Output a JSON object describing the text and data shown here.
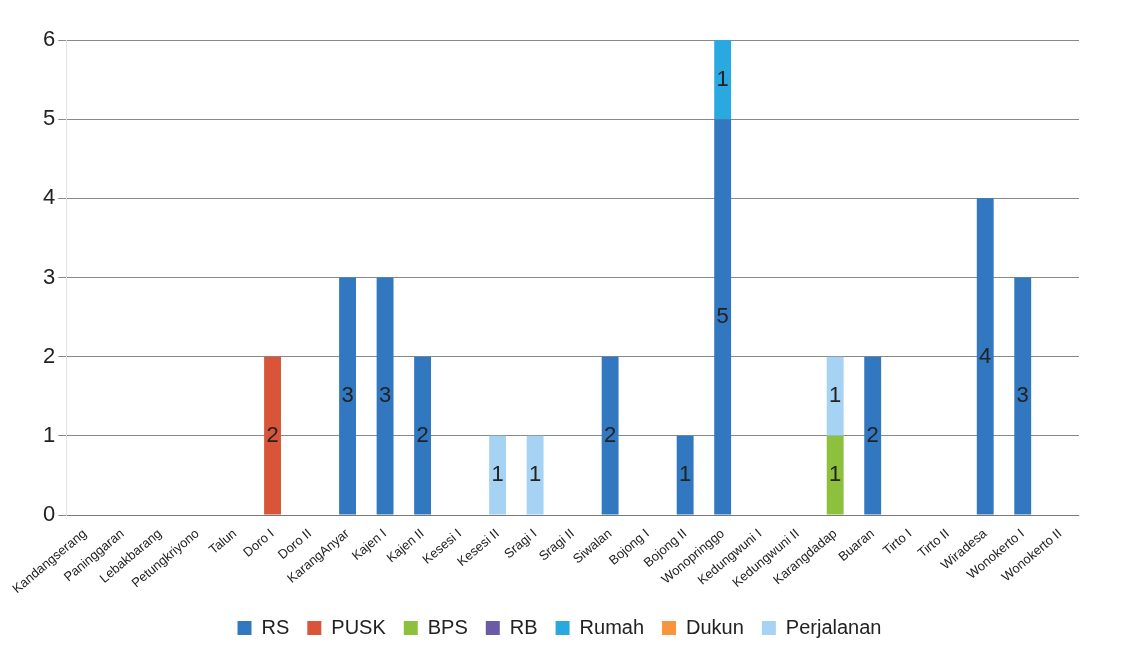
{
  "chart_data": {
    "type": "bar",
    "stacked": true,
    "categories": [
      "Kandangserang",
      "Paninggaran",
      "Lebakbarang",
      "Petungkriyono",
      "Talun",
      "Doro I",
      "Doro II",
      "KarangAnyar",
      "Kajen I",
      "Kajen II",
      "Kesesi I",
      "Kesesi II",
      "Sragi I",
      "Sragi II",
      "Siwalan",
      "Bojong I",
      "Bojong II",
      "Wonopringgo",
      "Kedungwuni I",
      "Kedungwuni II",
      "Karangdadap",
      "Buaran",
      "Tirto I",
      "Tirto II",
      "Wiradesa",
      "Wonokerto I",
      "Wonokerto II"
    ],
    "series": [
      {
        "name": "RS",
        "color": "#3178c0",
        "values": [
          null,
          null,
          null,
          null,
          null,
          null,
          null,
          3,
          3,
          2,
          null,
          null,
          null,
          null,
          2,
          null,
          1,
          5,
          null,
          null,
          null,
          2,
          null,
          null,
          4,
          3,
          null
        ]
      },
      {
        "name": "PUSK",
        "color": "#d8553a",
        "values": [
          null,
          null,
          null,
          null,
          null,
          2,
          null,
          null,
          null,
          null,
          null,
          null,
          null,
          null,
          null,
          null,
          null,
          null,
          null,
          null,
          null,
          null,
          null,
          null,
          null,
          null,
          null
        ]
      },
      {
        "name": "BPS",
        "color": "#8dc03c",
        "values": [
          null,
          null,
          null,
          null,
          null,
          null,
          null,
          null,
          null,
          null,
          null,
          null,
          null,
          null,
          null,
          null,
          null,
          null,
          null,
          null,
          1,
          null,
          null,
          null,
          null,
          null,
          null
        ]
      },
      {
        "name": "RB",
        "color": "#6a5aa8",
        "values": [
          null,
          null,
          null,
          null,
          null,
          null,
          null,
          null,
          null,
          null,
          null,
          null,
          null,
          null,
          null,
          null,
          null,
          null,
          null,
          null,
          null,
          null,
          null,
          null,
          null,
          null,
          null
        ]
      },
      {
        "name": "Rumah",
        "color": "#2aa9e0",
        "values": [
          null,
          null,
          null,
          null,
          null,
          null,
          null,
          null,
          null,
          null,
          null,
          null,
          null,
          null,
          null,
          null,
          null,
          1,
          null,
          null,
          null,
          null,
          null,
          null,
          null,
          null,
          null
        ]
      },
      {
        "name": "Dukun",
        "color": "#f7943c",
        "values": [
          null,
          null,
          null,
          null,
          null,
          null,
          null,
          null,
          null,
          null,
          null,
          null,
          null,
          null,
          null,
          null,
          null,
          null,
          null,
          null,
          null,
          null,
          null,
          null,
          null,
          null,
          null
        ]
      },
      {
        "name": "Perjalanan",
        "color": "#a6d2f4",
        "values": [
          null,
          null,
          null,
          null,
          null,
          null,
          null,
          null,
          null,
          null,
          null,
          1,
          1,
          null,
          null,
          null,
          null,
          null,
          null,
          null,
          1,
          null,
          null,
          null,
          null,
          null,
          null
        ]
      }
    ],
    "ylim": [
      0,
      6
    ],
    "yticks": [
      0,
      1,
      2,
      3,
      4,
      5,
      6
    ],
    "grid": "y",
    "legend": "bottom",
    "data_labels": true
  }
}
